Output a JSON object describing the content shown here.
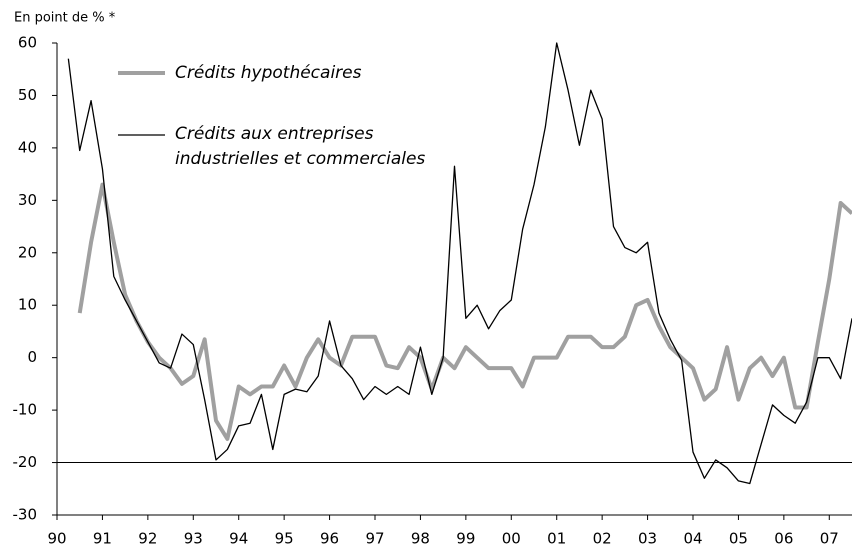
{
  "chart_data": {
    "type": "line",
    "y_label": "En point de % *",
    "x": [
      1990.25,
      1990.5,
      1990.75,
      1991,
      1991.25,
      1991.5,
      1991.75,
      1992,
      1992.25,
      1992.5,
      1992.75,
      1993,
      1993.25,
      1993.5,
      1993.75,
      1994,
      1994.25,
      1994.5,
      1994.75,
      1995,
      1995.25,
      1995.5,
      1995.75,
      1996,
      1996.25,
      1996.5,
      1996.75,
      1997,
      1997.25,
      1997.5,
      1997.75,
      1998,
      1998.25,
      1998.5,
      1998.75,
      1999,
      1999.25,
      1999.5,
      1999.75,
      2000,
      2000.25,
      2000.5,
      2000.75,
      2001,
      2001.25,
      2001.5,
      2001.75,
      2002,
      2002.25,
      2002.5,
      2002.75,
      2003,
      2003.25,
      2003.5,
      2003.75,
      2004,
      2004.25,
      2004.5,
      2004.75,
      2005,
      2005.25,
      2005.5,
      2005.75,
      2006,
      2006.25,
      2006.5,
      2006.75,
      2007,
      2007.25,
      2007.5
    ],
    "series": [
      {
        "name": "Crédits hypothécaires",
        "color": "#a0a0a0",
        "width": 4,
        "values": [
          null,
          8.5,
          22,
          33,
          22,
          12,
          7,
          3,
          0,
          -2,
          -5,
          -3.5,
          3.5,
          -12,
          -15.5,
          -5.5,
          -7,
          -5.5,
          -5.5,
          -1.5,
          -5.5,
          0,
          3.5,
          0,
          -1.5,
          4,
          4,
          4,
          -1.5,
          -2,
          2,
          0,
          -6,
          0,
          -2,
          2,
          0,
          -2,
          -2,
          -2,
          -5.5,
          0,
          0,
          0,
          4,
          4,
          4,
          2,
          2,
          4,
          10,
          11,
          6,
          2,
          0,
          -2,
          -8,
          -6,
          2,
          -8,
          -2,
          0,
          -3.5,
          0,
          -9.5,
          -9.5,
          3,
          15,
          29.5,
          27.5
        ]
      },
      {
        "name": "Crédits aux entreprises industrielles et commerciales",
        "color": "#000000",
        "width": 1.3,
        "values": [
          57,
          39.5,
          49,
          36,
          15.5,
          11,
          7,
          3,
          -1,
          -2,
          4.5,
          2.5,
          -8,
          -19.5,
          -17.5,
          -13,
          -12.5,
          -7,
          -17.5,
          -7,
          -6,
          -6.5,
          -3.5,
          7,
          -1.5,
          -4,
          -8,
          -5.5,
          -7,
          -5.5,
          -7,
          2,
          -7,
          0,
          36.5,
          7.5,
          10,
          5.5,
          9,
          11,
          24.5,
          33,
          44,
          60,
          51,
          40.5,
          51,
          45.5,
          25,
          21,
          20,
          22,
          8.5,
          3.5,
          -0.5,
          -18,
          -23,
          -19.5,
          -21,
          -23.5,
          -24,
          -16.5,
          -9,
          -11,
          -12.5,
          -8.5,
          0,
          0,
          -4,
          7.5
        ]
      }
    ],
    "xlim": [
      1990,
      2007.5
    ],
    "xticks": [
      {
        "value": 1990,
        "label": "90"
      },
      {
        "value": 1991,
        "label": "91"
      },
      {
        "value": 1992,
        "label": "92"
      },
      {
        "value": 1993,
        "label": "93"
      },
      {
        "value": 1994,
        "label": "94"
      },
      {
        "value": 1995,
        "label": "95"
      },
      {
        "value": 1996,
        "label": "96"
      },
      {
        "value": 1997,
        "label": "97"
      },
      {
        "value": 1998,
        "label": "98"
      },
      {
        "value": 1999,
        "label": "99"
      },
      {
        "value": 2000,
        "label": "00"
      },
      {
        "value": 2001,
        "label": "01"
      },
      {
        "value": 2002,
        "label": "02"
      },
      {
        "value": 2003,
        "label": "03"
      },
      {
        "value": 2004,
        "label": "04"
      },
      {
        "value": 2005,
        "label": "05"
      },
      {
        "value": 2006,
        "label": "06"
      },
      {
        "value": 2007,
        "label": "07"
      }
    ],
    "ylim": [
      -30,
      60
    ],
    "yticks": [
      -30,
      -20,
      -10,
      0,
      10,
      20,
      30,
      40,
      50,
      60
    ],
    "x_axis_crosses": -20
  }
}
